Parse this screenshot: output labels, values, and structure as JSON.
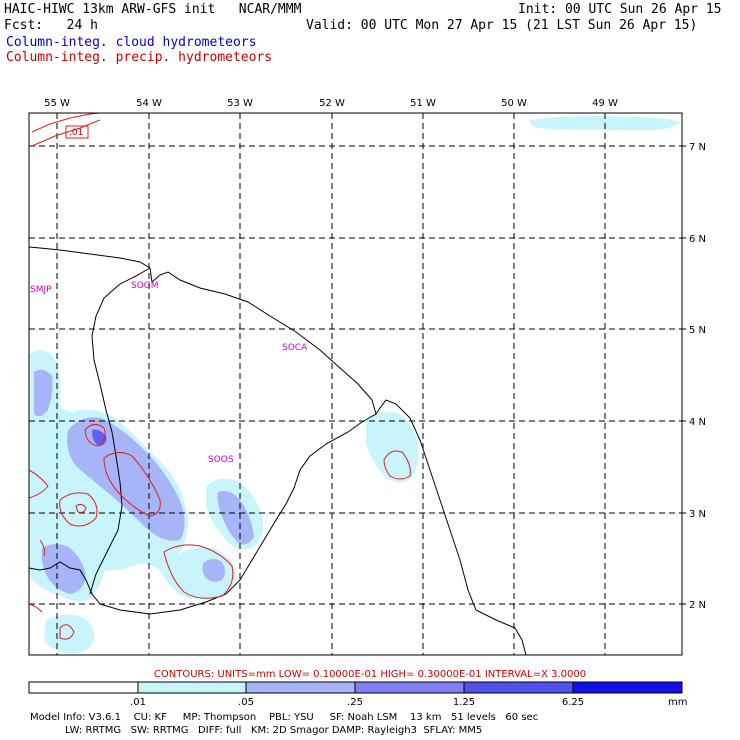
{
  "header": {
    "title": "HAIC-HIWC 13km ARW-GFS init   NCAR/MMM",
    "init": "Init: 00 UTC Sun 26 Apr 15",
    "fcst": "Fcst:   24 h",
    "valid": "Valid: 00 UTC Mon 27 Apr 15 (21 LST Sun 26 Apr 15)",
    "legend_cloud": "Column-integ. cloud hydrometeors",
    "legend_precip": "Column-integ. precip. hydrometeors"
  },
  "map": {
    "lon_labels": [
      "55 W",
      "54 W",
      "53 W",
      "52 W",
      "51 W",
      "50 W",
      "49 W"
    ],
    "lat_labels": [
      "7 N",
      "6 N",
      "5 N",
      "4 N",
      "3 N",
      "2 N"
    ],
    "stations": [
      "SMJP",
      "SOGM",
      "SOCA",
      "SOOS"
    ],
    "contour_label": ".01",
    "colors": {
      "fill_light": "#c8f4fc",
      "fill_mid": "#a8b4f8",
      "fill_dark": "#6060f0",
      "fill_darkest": "#1010e8",
      "contour": "#e02020",
      "station": "#cc00cc"
    }
  },
  "contours_info": "CONTOURS:  UNITS=mm  LOW= 0.10000E-01  HIGH= 0.30000E-01  INTERVAL=X  3.0000",
  "colorbar": {
    "ticks": [
      ".01",
      ".05",
      ".25",
      "1.25",
      "6.25"
    ],
    "unit": "mm"
  },
  "model_info": {
    "line1": "Model Info: V3.6.1    CU: KF     MP: Thompson    PBL: YSU     SF: Noah LSM    13 km   51 levels   60 sec",
    "line2": "           LW: RRTMG   SW: RRTMG   DIFF: full   KM: 2D Smagor DAMP: Rayleigh3  SFLAY: MM5"
  }
}
